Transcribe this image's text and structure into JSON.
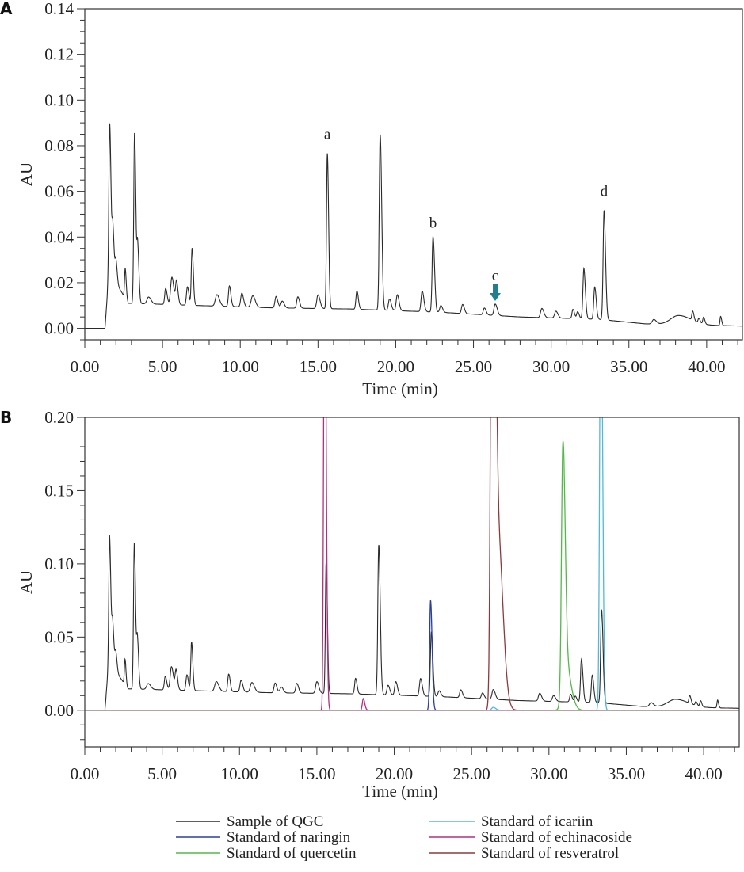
{
  "chart_data": [
    {
      "type": "line",
      "panel_label": "A",
      "xlabel": "Time (min)",
      "ylabel": "AU",
      "xlim": [
        0,
        42.3
      ],
      "ylim": [
        -0.005,
        0.14
      ],
      "xticks": [
        "0.00",
        "5.00",
        "10.00",
        "15.00",
        "20.00",
        "25.00",
        "30.00",
        "35.00",
        "40.00"
      ],
      "yticks": [
        "0.00",
        "0.02",
        "0.04",
        "0.06",
        "0.08",
        "0.10",
        "0.12",
        "0.14"
      ],
      "grid": false,
      "series": [
        {
          "name": "Sample of QGC",
          "color": "#2a2a2a",
          "scale": 1.0,
          "baseline": [
            [
              0,
              0
            ],
            [
              1.3,
              0
            ],
            [
              1.6,
              0.03
            ],
            [
              2.0,
              0.02
            ],
            [
              2.8,
              0.011
            ],
            [
              12,
              0.009
            ],
            [
              17,
              0.0085
            ],
            [
              23,
              0.007
            ],
            [
              28,
              0.005
            ],
            [
              33,
              0.004
            ],
            [
              36,
              0.002
            ],
            [
              42.3,
              0.001
            ]
          ],
          "peaks": [
            [
              1.6,
              0.06,
              0.05
            ],
            [
              1.8,
              0.02,
              0.05
            ],
            [
              2.0,
              0.01,
              0.05
            ],
            [
              2.6,
              0.013,
              0.04
            ],
            [
              3.2,
              0.075,
              0.05
            ],
            [
              3.4,
              0.025,
              0.05
            ],
            [
              4.1,
              0.003,
              0.1
            ],
            [
              5.2,
              0.007,
              0.06
            ],
            [
              5.6,
              0.012,
              0.08
            ],
            [
              5.9,
              0.01,
              0.06
            ],
            [
              6.6,
              0.008,
              0.06
            ],
            [
              6.9,
              0.025,
              0.05
            ],
            [
              8.5,
              0.005,
              0.1
            ],
            [
              9.3,
              0.009,
              0.06
            ],
            [
              10.1,
              0.006,
              0.07
            ],
            [
              10.8,
              0.005,
              0.1
            ],
            [
              12.3,
              0.005,
              0.07
            ],
            [
              12.7,
              0.003,
              0.08
            ],
            [
              13.7,
              0.005,
              0.07
            ],
            [
              15.0,
              0.006,
              0.08
            ],
            [
              15.6,
              0.068,
              0.05
            ],
            [
              17.5,
              0.008,
              0.06
            ],
            [
              19.0,
              0.077,
              0.06
            ],
            [
              19.6,
              0.005,
              0.07
            ],
            [
              20.1,
              0.007,
              0.07
            ],
            [
              21.7,
              0.009,
              0.07
            ],
            [
              22.4,
              0.033,
              0.06
            ],
            [
              22.9,
              0.003,
              0.07
            ],
            [
              24.3,
              0.004,
              0.07
            ],
            [
              25.7,
              0.003,
              0.07
            ],
            [
              26.4,
              0.005,
              0.08
            ],
            [
              29.4,
              0.004,
              0.08
            ],
            [
              30.3,
              0.003,
              0.08
            ],
            [
              31.4,
              0.004,
              0.06
            ],
            [
              31.7,
              0.003,
              0.06
            ],
            [
              32.1,
              0.022,
              0.06
            ],
            [
              32.8,
              0.014,
              0.06
            ],
            [
              33.4,
              0.048,
              0.06
            ],
            [
              36.6,
              0.002,
              0.1
            ],
            [
              38.2,
              0.004,
              0.5
            ],
            [
              39.1,
              0.004,
              0.05
            ],
            [
              39.5,
              0.002,
              0.05
            ],
            [
              39.8,
              0.003,
              0.05
            ],
            [
              40.9,
              0.004,
              0.04
            ]
          ]
        }
      ],
      "annotations": [
        {
          "text": "a",
          "x": 15.6,
          "y": 0.083
        },
        {
          "text": "b",
          "x": 22.4,
          "y": 0.044
        },
        {
          "text": "c",
          "x": 26.4,
          "y": 0.021,
          "arrow": true,
          "arrow_color": "#1f7f8f"
        },
        {
          "text": "d",
          "x": 33.4,
          "y": 0.058
        }
      ]
    },
    {
      "type": "line",
      "panel_label": "B",
      "xlabel": "Time (min)",
      "ylabel": "AU",
      "xlim": [
        0,
        42.3
      ],
      "ylim": [
        -0.025,
        0.2
      ],
      "xticks": [
        "0.00",
        "5.00",
        "10.00",
        "15.00",
        "20.00",
        "25.00",
        "30.00",
        "35.00",
        "40.00"
      ],
      "yticks": [
        "0.00",
        "0.05",
        "0.10",
        "0.15",
        "0.20"
      ],
      "grid": false,
      "series": [
        {
          "name": "Sample of QGC",
          "color": "#2a2a2a",
          "scale": 1.33,
          "same_as_panel_A": true
        },
        {
          "name": "Standard of naringin",
          "color": "#2b3f9e",
          "baseline": [
            [
              0,
              0
            ],
            [
              42.3,
              0
            ]
          ],
          "peaks": [
            [
              22.35,
              0.075,
              0.06
            ]
          ]
        },
        {
          "name": "Standard of quercetin",
          "color": "#52b848",
          "baseline": [
            [
              0,
              0
            ],
            [
              42.3,
              0
            ]
          ],
          "peaks": [
            [
              30.9,
              0.165,
              0.09
            ],
            [
              31.1,
              0.03,
              0.2
            ]
          ]
        },
        {
          "name": "Standard of icariin",
          "color": "#52b8d8",
          "baseline": [
            [
              0,
              0
            ],
            [
              42.3,
              0
            ]
          ],
          "peaks": [
            [
              33.35,
              0.32,
              0.07
            ],
            [
              26.4,
              0.002,
              0.1
            ]
          ]
        },
        {
          "name": "Standard of echinacoside",
          "color": "#b0307e",
          "baseline": [
            [
              0,
              0
            ],
            [
              42.3,
              0
            ]
          ],
          "peaks": [
            [
              15.5,
              0.35,
              0.06
            ],
            [
              18.0,
              0.008,
              0.06
            ]
          ]
        },
        {
          "name": "Standard of resveratrol",
          "color": "#8a3a3e",
          "baseline": [
            [
              0,
              0
            ],
            [
              42.3,
              0
            ]
          ],
          "peaks": [
            [
              26.35,
              0.5,
              0.1
            ],
            [
              26.7,
              0.12,
              0.2
            ]
          ]
        }
      ],
      "legend": {
        "placement": "bottom",
        "entries": [
          {
            "label": "Sample of QGC",
            "color": "#2a2a2a"
          },
          {
            "label": "Standard of naringin",
            "color": "#2b3f9e"
          },
          {
            "label": "Standard of quercetin",
            "color": "#52b848"
          },
          {
            "label": "Standard of icariin",
            "color": "#52b8d8"
          },
          {
            "label": "Standard of echinacoside",
            "color": "#b0307e"
          },
          {
            "label": "Standard of resveratrol",
            "color": "#8a3a3e"
          }
        ]
      }
    }
  ]
}
